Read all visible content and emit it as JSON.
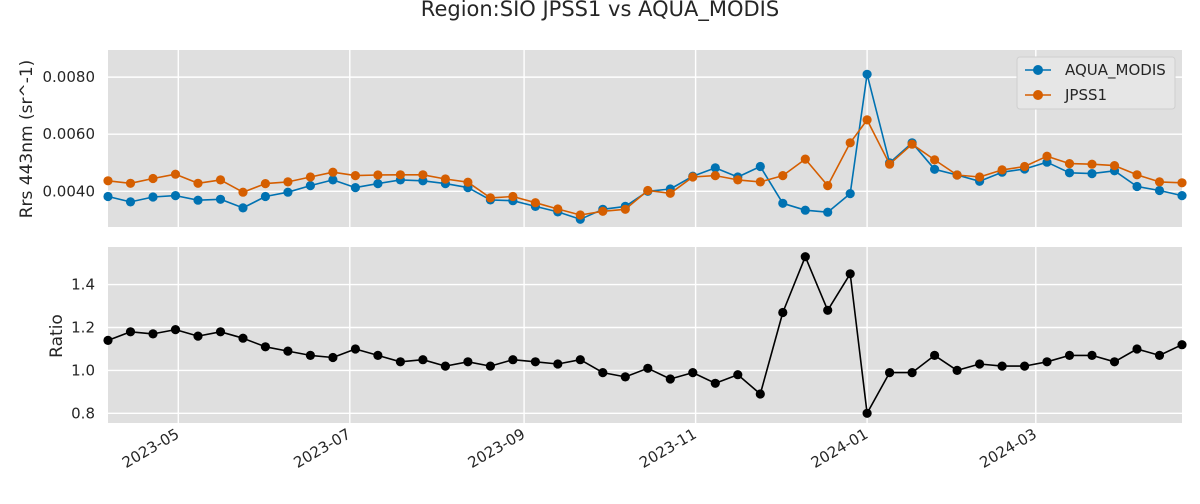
{
  "figure": {
    "title": "Region:SIO JPSS1 vs AQUA_MODIS"
  },
  "colors": {
    "aqua_modis": "#0072b2",
    "jpss1": "#d55e00",
    "ratio": "#000000",
    "panel_background": "#dfdfdf",
    "grid": "#ffffff"
  },
  "chart_data": [
    {
      "type": "line",
      "markers": "circle",
      "grid": true,
      "legend": "top-right",
      "ylabel": "Rrs 443nm (sr^-1)",
      "xlabel": "",
      "xlim": [
        "2023-04-06",
        "2024-04-22"
      ],
      "ylim": [
        0.00275,
        0.00895
      ],
      "yticks": [
        0.004,
        0.006,
        0.008
      ],
      "ytick_labels": [
        "0.0040",
        "0.0060",
        "0.0080"
      ],
      "x": [
        "2023-04-06",
        "2023-04-14",
        "2023-04-22",
        "2023-04-30",
        "2023-05-08",
        "2023-05-16",
        "2023-05-24",
        "2023-06-01",
        "2023-06-09",
        "2023-06-17",
        "2023-06-25",
        "2023-07-03",
        "2023-07-11",
        "2023-07-19",
        "2023-07-27",
        "2023-08-04",
        "2023-08-12",
        "2023-08-20",
        "2023-08-28",
        "2023-09-05",
        "2023-09-13",
        "2023-09-21",
        "2023-09-29",
        "2023-10-07",
        "2023-10-15",
        "2023-10-23",
        "2023-10-31",
        "2023-11-08",
        "2023-11-16",
        "2023-11-24",
        "2023-12-02",
        "2023-12-10",
        "2023-12-18",
        "2023-12-26",
        "2024-01-01",
        "2024-01-09",
        "2024-01-17",
        "2024-01-25",
        "2024-02-02",
        "2024-02-10",
        "2024-02-18",
        "2024-02-26",
        "2024-03-05",
        "2024-03-13",
        "2024-03-21",
        "2024-03-29",
        "2024-04-06",
        "2024-04-14",
        "2024-04-22"
      ],
      "series": [
        {
          "name": "AQUA_MODIS",
          "values": [
            0.00382,
            0.00363,
            0.0038,
            0.00385,
            0.00369,
            0.00372,
            0.00342,
            0.00382,
            0.00397,
            0.0042,
            0.0044,
            0.00413,
            0.00427,
            0.0044,
            0.00437,
            0.00427,
            0.00413,
            0.0037,
            0.00367,
            0.00347,
            0.00328,
            0.00302,
            0.00337,
            0.00347,
            0.004,
            0.00408,
            0.00453,
            0.00482,
            0.0045,
            0.00487,
            0.00358,
            0.00334,
            0.00327,
            0.00392,
            0.0081,
            0.005,
            0.0057,
            0.00477,
            0.00457,
            0.00435,
            0.00467,
            0.00478,
            0.00502,
            0.00465,
            0.00462,
            0.00472,
            0.00417,
            0.00403,
            0.00385
          ]
        },
        {
          "name": "JPSS1",
          "values": [
            0.00437,
            0.00428,
            0.00445,
            0.0046,
            0.00428,
            0.0044,
            0.00397,
            0.00427,
            0.00433,
            0.0045,
            0.00467,
            0.00455,
            0.00457,
            0.00458,
            0.00458,
            0.00443,
            0.00432,
            0.00377,
            0.00382,
            0.0036,
            0.00338,
            0.00317,
            0.0033,
            0.00337,
            0.00403,
            0.00393,
            0.0045,
            0.00455,
            0.0044,
            0.00433,
            0.00455,
            0.00513,
            0.0042,
            0.0057,
            0.0065,
            0.00495,
            0.00565,
            0.0051,
            0.00457,
            0.0045,
            0.00475,
            0.00487,
            0.00523,
            0.00497,
            0.00495,
            0.0049,
            0.00458,
            0.00433,
            0.0043
          ]
        }
      ]
    },
    {
      "type": "line",
      "markers": "circle",
      "grid": true,
      "ylabel": "Ratio",
      "xlabel": "",
      "xlim": [
        "2023-04-06",
        "2024-04-22"
      ],
      "ylim": [
        0.755,
        1.575
      ],
      "yticks": [
        0.8,
        1.0,
        1.2,
        1.4
      ],
      "ytick_labels": [
        "0.8",
        "1.0",
        "1.2",
        "1.4"
      ],
      "x_ticks": [
        "2023-05-01",
        "2023-07-01",
        "2023-09-01",
        "2023-11-01",
        "2024-01-01",
        "2024-03-01"
      ],
      "x_tick_labels": [
        "2023-05",
        "2023-07",
        "2023-09",
        "2023-11",
        "2024-01",
        "2024-03"
      ],
      "x": [
        "2023-04-06",
        "2023-04-14",
        "2023-04-22",
        "2023-04-30",
        "2023-05-08",
        "2023-05-16",
        "2023-05-24",
        "2023-06-01",
        "2023-06-09",
        "2023-06-17",
        "2023-06-25",
        "2023-07-03",
        "2023-07-11",
        "2023-07-19",
        "2023-07-27",
        "2023-08-04",
        "2023-08-12",
        "2023-08-20",
        "2023-08-28",
        "2023-09-05",
        "2023-09-13",
        "2023-09-21",
        "2023-09-29",
        "2023-10-07",
        "2023-10-15",
        "2023-10-23",
        "2023-10-31",
        "2023-11-08",
        "2023-11-16",
        "2023-11-24",
        "2023-12-02",
        "2023-12-10",
        "2023-12-18",
        "2023-12-26",
        "2024-01-01",
        "2024-01-09",
        "2024-01-17",
        "2024-01-25",
        "2024-02-02",
        "2024-02-10",
        "2024-02-18",
        "2024-02-26",
        "2024-03-05",
        "2024-03-13",
        "2024-03-21",
        "2024-03-29",
        "2024-04-06",
        "2024-04-14",
        "2024-04-22"
      ],
      "series": [
        {
          "values": [
            1.14,
            1.18,
            1.17,
            1.19,
            1.16,
            1.18,
            1.15,
            1.11,
            1.09,
            1.07,
            1.06,
            1.1,
            1.07,
            1.04,
            1.05,
            1.02,
            1.04,
            1.02,
            1.05,
            1.04,
            1.03,
            1.05,
            0.99,
            0.97,
            1.01,
            0.96,
            0.99,
            0.94,
            0.98,
            0.89,
            1.27,
            1.53,
            1.28,
            1.45,
            0.8,
            0.99,
            0.99,
            1.07,
            1.0,
            1.03,
            1.02,
            1.02,
            1.04,
            1.07,
            1.07,
            1.04,
            1.1,
            1.07,
            1.12
          ]
        }
      ]
    }
  ]
}
